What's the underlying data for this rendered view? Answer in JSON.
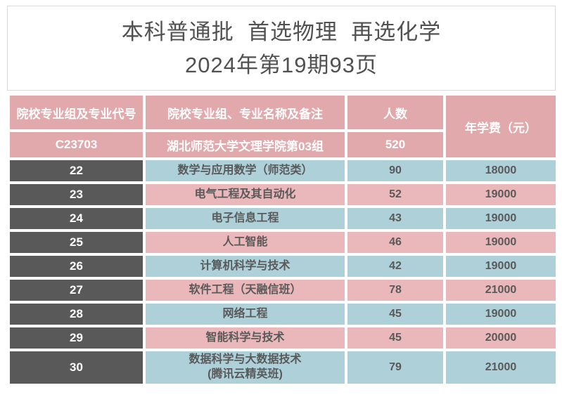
{
  "title": {
    "line1": "本科普通批  首选物理  再选化学",
    "line2": "2024年第19期93页"
  },
  "table": {
    "headers": {
      "code_col": "院校专业组及专业代号",
      "name_col": "院校专业组、专业名称及备注",
      "count_col": "人数",
      "fee_col": "年学费（元）"
    },
    "group_row": {
      "code": "C23703",
      "name": "湖北师范大学文理学院第03组",
      "count": "520"
    },
    "rows": [
      {
        "code": "22",
        "name": "数学与应用数学（师范类）",
        "count": "90",
        "fee": "18000"
      },
      {
        "code": "23",
        "name": "电气工程及其自动化",
        "count": "52",
        "fee": "19000"
      },
      {
        "code": "24",
        "name": "电子信息工程",
        "count": "43",
        "fee": "19000"
      },
      {
        "code": "25",
        "name": "人工智能",
        "count": "46",
        "fee": "19000"
      },
      {
        "code": "26",
        "name": "计算机科学与技术",
        "count": "42",
        "fee": "19000"
      },
      {
        "code": "27",
        "name": "软件工程（天融信班）",
        "count": "78",
        "fee": "21000"
      },
      {
        "code": "28",
        "name": "网络工程",
        "count": "45",
        "fee": "19000"
      },
      {
        "code": "29",
        "name": "智能科学与技术",
        "count": "45",
        "fee": "20000"
      },
      {
        "code": "30",
        "name": "数据科学与大数据技术",
        "name_line2": "(腾讯云精英班)",
        "count": "79",
        "fee": "21000"
      }
    ]
  },
  "colors": {
    "header_pink": "#e1a9ac",
    "row_pink": "#eab8bb",
    "row_blue": "#aed0d8",
    "code_gray": "#595959",
    "text_gray": "#595959",
    "title_border": "#d9d9d9"
  }
}
